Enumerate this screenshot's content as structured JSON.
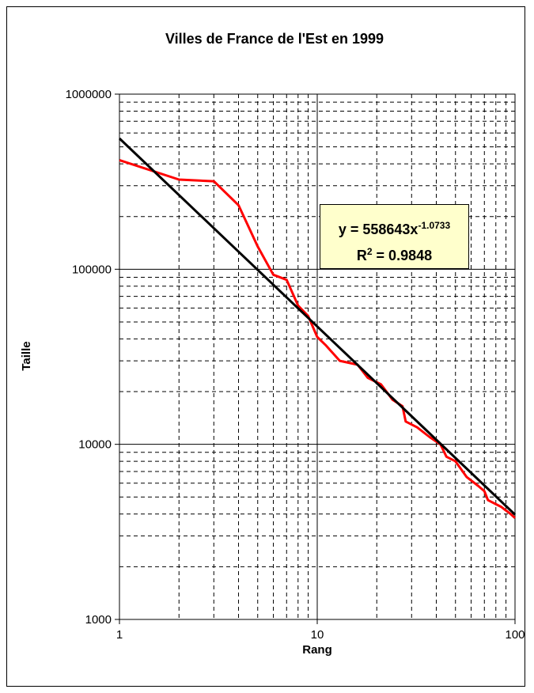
{
  "chart_data": {
    "type": "line",
    "title": "Villes de France de l'Est en 1999",
    "xlabel": "Rang",
    "ylabel": "Taille",
    "xscale": "log",
    "yscale": "log",
    "xlim": [
      1,
      100
    ],
    "ylim": [
      1000,
      1000000
    ],
    "x_ticks": [
      "1",
      "10",
      "100"
    ],
    "y_ticks": [
      "1000",
      "10000",
      "100000",
      "1000000"
    ],
    "grid": "major solid, minor dashed",
    "series": [
      {
        "color": "#ff0000",
        "points": [
          [
            1,
            420000
          ],
          [
            2,
            325000
          ],
          [
            3,
            318000
          ],
          [
            4,
            232000
          ],
          [
            5,
            135000
          ],
          [
            6,
            93000
          ],
          [
            7,
            87000
          ],
          [
            8,
            62000
          ],
          [
            9,
            54000
          ],
          [
            10,
            41000
          ],
          [
            11,
            37000
          ],
          [
            13,
            30000
          ],
          [
            16,
            28500
          ],
          [
            18,
            24000
          ],
          [
            21,
            22000
          ],
          [
            24,
            18000
          ],
          [
            27,
            16500
          ],
          [
            28,
            13500
          ],
          [
            32,
            12500
          ],
          [
            37,
            11000
          ],
          [
            42,
            10000
          ],
          [
            45,
            8500
          ],
          [
            50,
            8000
          ],
          [
            57,
            6500
          ],
          [
            65,
            5800
          ],
          [
            70,
            5400
          ],
          [
            73,
            4800
          ],
          [
            85,
            4400
          ],
          [
            95,
            4000
          ],
          [
            100,
            3800
          ]
        ]
      },
      {
        "color": "#000000",
        "fit": {
          "a": 558643,
          "b": -1.0733
        },
        "points": [
          [
            1,
            558643
          ],
          [
            100,
            3970
          ]
        ]
      }
    ],
    "annotation": {
      "line1_pre": "y = 558643x",
      "line1_sup": "-1.0733",
      "line2_pre": "R",
      "line2_sup": "2",
      "line2_post": " = 0.9848"
    }
  }
}
